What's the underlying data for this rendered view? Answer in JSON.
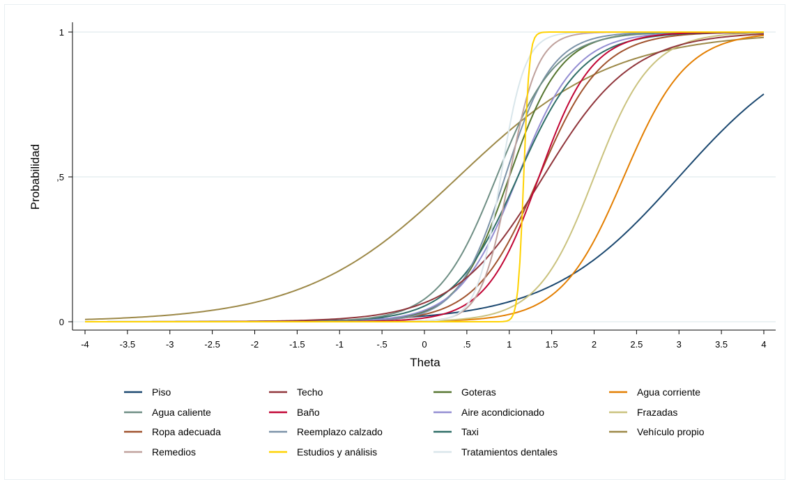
{
  "chart_data": {
    "type": "line",
    "xlabel": "Theta",
    "ylabel": "Probabilidad",
    "xlim": [
      -4,
      4
    ],
    "ylim": [
      0,
      1
    ],
    "x_ticks": [
      {
        "value": -4,
        "label": "-4"
      },
      {
        "value": -3.5,
        "label": "-3.5"
      },
      {
        "value": -3,
        "label": "-3"
      },
      {
        "value": -2.5,
        "label": "-2.5"
      },
      {
        "value": -2,
        "label": "-2"
      },
      {
        "value": -1.5,
        "label": "-1.5"
      },
      {
        "value": -1,
        "label": "-1"
      },
      {
        "value": -0.5,
        "label": "-.5"
      },
      {
        "value": 0,
        "label": "0"
      },
      {
        "value": 0.5,
        "label": ".5"
      },
      {
        "value": 1,
        "label": "1"
      },
      {
        "value": 1.5,
        "label": "1.5"
      },
      {
        "value": 2,
        "label": "2"
      },
      {
        "value": 2.5,
        "label": "2.5"
      },
      {
        "value": 3,
        "label": "3"
      },
      {
        "value": 3.5,
        "label": "3.5"
      },
      {
        "value": 4,
        "label": "4"
      }
    ],
    "y_ticks": [
      {
        "value": 0,
        "label": "0"
      },
      {
        "value": 0.5,
        "label": ",5"
      },
      {
        "value": 1,
        "label": "1"
      }
    ],
    "grid": "horizontal",
    "legend_position": "bottom",
    "series": [
      {
        "name": "Piso",
        "color": "#1a476f",
        "a": 1.3,
        "b": 3.0
      },
      {
        "name": "Techo",
        "color": "#90353b",
        "a": 1.9,
        "b": 1.4
      },
      {
        "name": "Goteras",
        "color": "#55752f",
        "a": 3.3,
        "b": 1.0
      },
      {
        "name": "Agua corriente",
        "color": "#e37e00",
        "a": 2.7,
        "b": 2.35
      },
      {
        "name": "Agua caliente",
        "color": "#6e8e84",
        "a": 2.9,
        "b": 0.85
      },
      {
        "name": "Baño",
        "color": "#c10534",
        "a": 3.2,
        "b": 1.35
      },
      {
        "name": "Aire acondicionado",
        "color": "#938dd2",
        "a": 2.9,
        "b": 1.1
      },
      {
        "name": "Frazadas",
        "color": "#cac27e",
        "a": 3.0,
        "b": 2.0
      },
      {
        "name": "Ropa adecuada",
        "color": "#a0522d",
        "a": 2.7,
        "b": 1.35
      },
      {
        "name": "Reemplazo calzado",
        "color": "#7b92a8",
        "a": 3.6,
        "b": 0.95
      },
      {
        "name": "Taxi",
        "color": "#2d6d66",
        "a": 2.6,
        "b": 1.1
      },
      {
        "name": "Vehículo propio",
        "color": "#9c8847",
        "a": 1.1,
        "b": 0.4
      },
      {
        "name": "Remedios",
        "color": "#bfa19c",
        "a": 6.0,
        "b": 1.0
      },
      {
        "name": "Estudios y análisis",
        "color": "#ffd200",
        "a": 30.0,
        "b": 1.17
      },
      {
        "name": "Tratamientos dentales",
        "color": "#d9e6eb",
        "a": 7.0,
        "b": 0.9
      }
    ]
  }
}
